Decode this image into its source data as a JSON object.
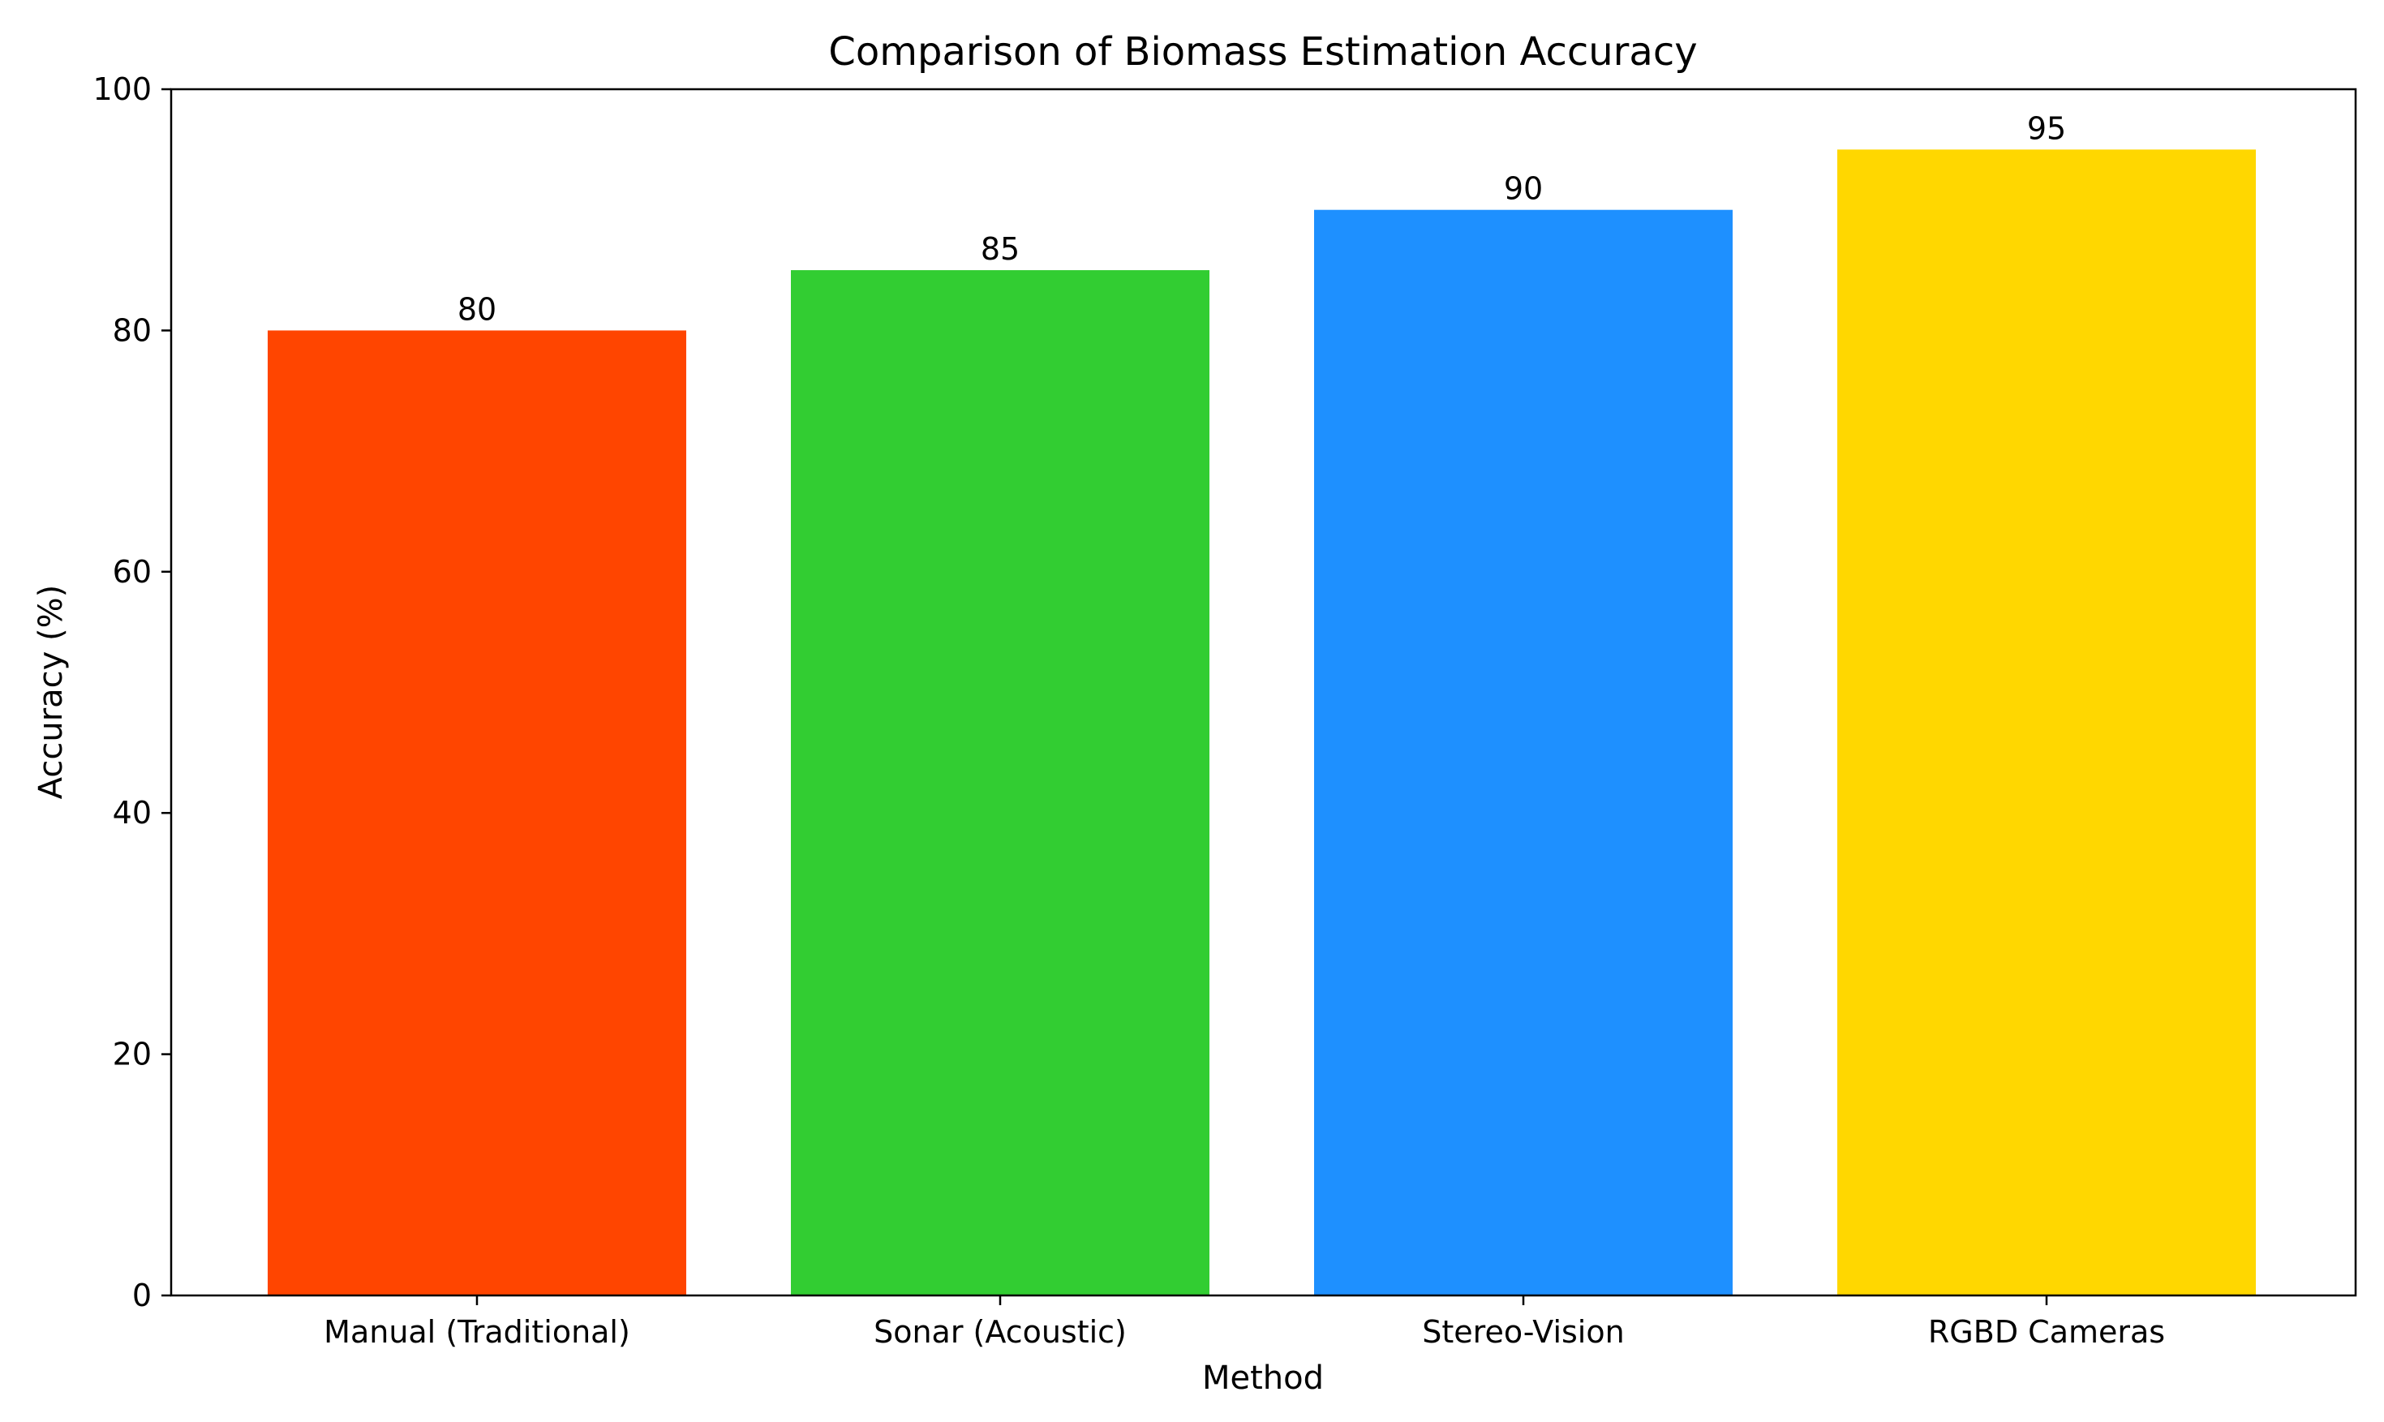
{
  "chart_data": {
    "type": "bar",
    "title": "Comparison of Biomass Estimation Accuracy",
    "xlabel": "Method",
    "ylabel": "Accuracy (%)",
    "categories": [
      "Manual (Traditional)",
      "Sonar (Acoustic)",
      "Stereo-Vision",
      "RGBD Cameras"
    ],
    "values": [
      80,
      85,
      90,
      95
    ],
    "value_labels": [
      "80",
      "85",
      "90",
      "95"
    ],
    "colors": [
      "#FF4500",
      "#32CD32",
      "#1E90FF",
      "#FFD700"
    ],
    "ylim": [
      0,
      100
    ],
    "yticks": [
      0,
      20,
      40,
      60,
      80,
      100
    ],
    "grid": false,
    "legend": "none"
  }
}
